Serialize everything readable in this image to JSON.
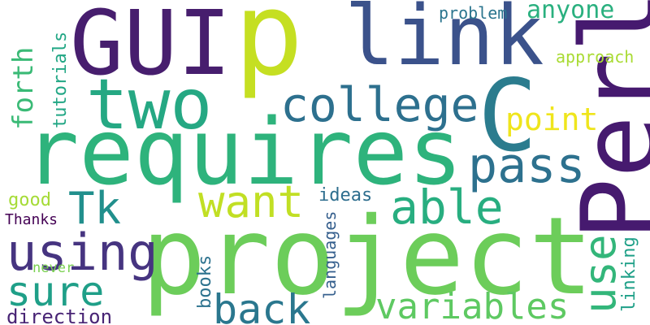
{
  "words": [
    {
      "id": "p",
      "text": "p",
      "color": "#c5df22"
    },
    {
      "id": "gui",
      "text": "GUI",
      "color": "#471e6e"
    },
    {
      "id": "link",
      "text": "link",
      "color": "#3b528b"
    },
    {
      "id": "c",
      "text": "C",
      "color": "#2b7c8e"
    },
    {
      "id": "two",
      "text": "two",
      "color": "#25a883"
    },
    {
      "id": "requires",
      "text": "requires",
      "color": "#2eb37c"
    },
    {
      "id": "perl",
      "text": "Perl",
      "color": "#461a6f"
    },
    {
      "id": "project",
      "text": "project",
      "color": "#6ccd5a"
    },
    {
      "id": "college",
      "text": "college",
      "color": "#2d708e"
    },
    {
      "id": "pass",
      "text": "pass",
      "color": "#2d718e"
    },
    {
      "id": "want",
      "text": "want",
      "color": "#c1df24"
    },
    {
      "id": "able",
      "text": "able",
      "color": "#28ae80"
    },
    {
      "id": "tk",
      "text": "Tk",
      "color": "#218f8c"
    },
    {
      "id": "using",
      "text": "using",
      "color": "#463480"
    },
    {
      "id": "sure",
      "text": "sure",
      "color": "#1f9f88"
    },
    {
      "id": "back",
      "text": "back",
      "color": "#2a778e"
    },
    {
      "id": "variables",
      "text": "variables",
      "color": "#5ec962"
    },
    {
      "id": "use",
      "text": "use",
      "color": "#33b67a"
    },
    {
      "id": "forth",
      "text": "forth",
      "color": "#3aba76"
    },
    {
      "id": "tutorials",
      "text": "tutorials",
      "color": "#22a785"
    },
    {
      "id": "point",
      "text": "point",
      "color": "#efe51c"
    },
    {
      "id": "anyone",
      "text": "anyone",
      "color": "#2ab07f"
    },
    {
      "id": "problem",
      "text": "problem",
      "color": "#2b758e"
    },
    {
      "id": "approach",
      "text": "approach",
      "color": "#a9db33"
    },
    {
      "id": "ideas",
      "text": "ideas",
      "color": "#2e6e8e"
    },
    {
      "id": "good",
      "text": "good",
      "color": "#a5db36"
    },
    {
      "id": "thanks",
      "text": "Thanks",
      "color": "#440154"
    },
    {
      "id": "never",
      "text": "never",
      "color": "#7ad151"
    },
    {
      "id": "books",
      "text": "books",
      "color": "#2c728e"
    },
    {
      "id": "languages",
      "text": "languages",
      "color": "#355f8d"
    },
    {
      "id": "linking",
      "text": "linking",
      "color": "#1fa088"
    },
    {
      "id": "direction",
      "text": "direction",
      "color": "#482475"
    }
  ]
}
